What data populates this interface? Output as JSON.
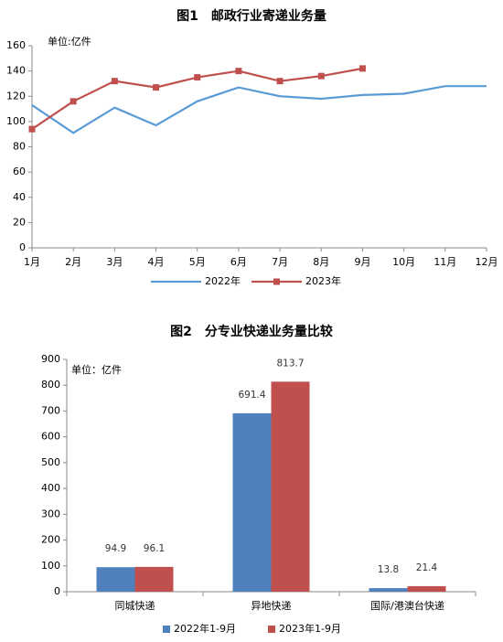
{
  "chart_data": [
    {
      "type": "line",
      "title": "图1　邮政行业寄递业务量",
      "annotation": "单位:亿件",
      "categories": [
        "1月",
        "2月",
        "3月",
        "4月",
        "5月",
        "6月",
        "7月",
        "8月",
        "9月",
        "10月",
        "11月",
        "12月"
      ],
      "series": [
        {
          "name": "2022年",
          "color": "#5b9bd5",
          "marker": false,
          "values": [
            113,
            91,
            111,
            97,
            116,
            127,
            120,
            118,
            121,
            122,
            128,
            128
          ]
        },
        {
          "name": "2023年",
          "color": "#c0504d",
          "marker": true,
          "values": [
            94,
            116,
            132,
            127,
            135,
            140,
            132,
            136,
            142,
            null,
            null,
            null
          ]
        }
      ],
      "ylim": [
        0,
        160
      ],
      "yticks": [
        0,
        20,
        40,
        60,
        80,
        100,
        120,
        140,
        160
      ],
      "grid": false
    },
    {
      "type": "bar",
      "title": "图2　分专业快递业务量比较",
      "annotation": "单位：亿件",
      "categories": [
        "同城快递",
        "异地快递",
        "国际/港澳台快递"
      ],
      "series": [
        {
          "name": "2022年1-9月",
          "color": "#4f81bd",
          "values": [
            94.9,
            691.4,
            13.8
          ]
        },
        {
          "name": "2023年1-9月",
          "color": "#c0504d",
          "values": [
            96.1,
            813.7,
            21.4
          ]
        }
      ],
      "ylim": [
        0,
        900
      ],
      "yticks": [
        0,
        100,
        200,
        300,
        400,
        500,
        600,
        700,
        800,
        900
      ],
      "grid": false
    }
  ]
}
